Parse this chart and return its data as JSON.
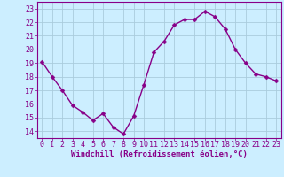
{
  "x": [
    0,
    1,
    2,
    3,
    4,
    5,
    6,
    7,
    8,
    9,
    10,
    11,
    12,
    13,
    14,
    15,
    16,
    17,
    18,
    19,
    20,
    21,
    22,
    23
  ],
  "y": [
    19.1,
    18.0,
    17.0,
    15.9,
    15.4,
    14.8,
    15.3,
    14.3,
    13.8,
    15.1,
    17.4,
    19.8,
    20.6,
    21.8,
    22.2,
    22.2,
    22.8,
    22.4,
    21.5,
    20.0,
    19.0,
    18.2,
    18.0,
    17.7
  ],
  "xlim": [
    -0.5,
    23.5
  ],
  "ylim": [
    13.5,
    23.5
  ],
  "yticks": [
    14,
    15,
    16,
    17,
    18,
    19,
    20,
    21,
    22,
    23
  ],
  "xticks": [
    0,
    1,
    2,
    3,
    4,
    5,
    6,
    7,
    8,
    9,
    10,
    11,
    12,
    13,
    14,
    15,
    16,
    17,
    18,
    19,
    20,
    21,
    22,
    23
  ],
  "xlabel": "Windchill (Refroidissement éolien,°C)",
  "line_color": "#880088",
  "bg_color": "#cceeff",
  "grid_color": "#aaccdd",
  "marker": "D",
  "marker_size": 2.5,
  "line_width": 1.0,
  "xlabel_fontsize": 6.5,
  "tick_fontsize": 6.0,
  "tick_color": "#880088",
  "label_color": "#880088",
  "spine_color": "#880088"
}
